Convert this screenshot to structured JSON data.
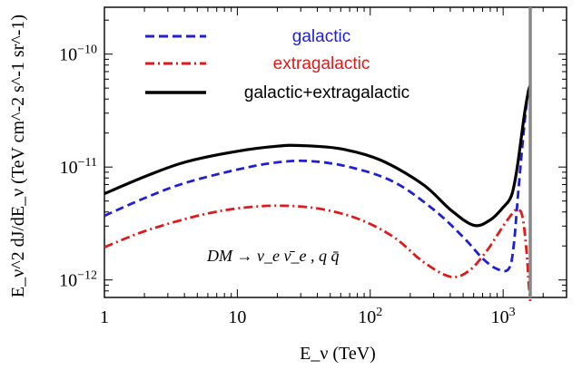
{
  "chart_data": {
    "type": "line",
    "xscale": "log",
    "yscale": "log",
    "xlim": [
      1,
      3000
    ],
    "ylim": [
      7e-13,
      2.6e-10
    ],
    "xlabel": "E_ν (TeV)",
    "ylabel": "E_ν^2 dJ/dE_ν (TeV cm^-2 s^-1 sr^-1)",
    "x_ticks": [
      {
        "value": 1,
        "label": "1"
      },
      {
        "value": 10,
        "label": "10"
      },
      {
        "value": 100,
        "label": "10",
        "exp": "2"
      },
      {
        "value": 1000,
        "label": "10",
        "exp": "3"
      }
    ],
    "y_ticks": [
      {
        "value": 1e-12,
        "label": "10",
        "exp": "−12"
      },
      {
        "value": 1e-11,
        "label": "10",
        "exp": "−11"
      },
      {
        "value": 1e-10,
        "label": "10",
        "exp": "−10"
      }
    ],
    "cutoff_line": {
      "x": 1600,
      "color": "#888888"
    },
    "legend_position": "top",
    "annotation": "DM → ν_e ν̄_e , q q̄",
    "series": [
      {
        "name": "galactic",
        "color": "#1f1fd6",
        "dash": "dashed",
        "points": [
          [
            1,
            3.7e-12
          ],
          [
            2,
            5.3e-12
          ],
          [
            4,
            7.2e-12
          ],
          [
            10,
            9.5e-12
          ],
          [
            20,
            1.1e-11
          ],
          [
            35,
            1.13e-11
          ],
          [
            70,
            1e-11
          ],
          [
            150,
            7.4e-12
          ],
          [
            300,
            4.2e-12
          ],
          [
            500,
            2.4e-12
          ],
          [
            700,
            1.55e-12
          ],
          [
            900,
            1.25e-12
          ],
          [
            1100,
            1.25e-12
          ],
          [
            1200,
            2e-12
          ],
          [
            1300,
            6e-12
          ],
          [
            1450,
            2.5e-11
          ],
          [
            1550,
            4.8e-11
          ],
          [
            1600,
            5.3e-11
          ]
        ]
      },
      {
        "name": "extragalactic",
        "color": "#e01a1a",
        "dash": "dashdot",
        "points": [
          [
            1,
            1.95e-12
          ],
          [
            2,
            2.7e-12
          ],
          [
            5,
            3.7e-12
          ],
          [
            10,
            4.3e-12
          ],
          [
            20,
            4.55e-12
          ],
          [
            40,
            4.3e-12
          ],
          [
            80,
            3.5e-12
          ],
          [
            150,
            2.4e-12
          ],
          [
            250,
            1.45e-12
          ],
          [
            400,
            1.07e-12
          ],
          [
            550,
            1.2e-12
          ],
          [
            750,
            1.8e-12
          ],
          [
            1000,
            3e-12
          ],
          [
            1200,
            4e-12
          ],
          [
            1300,
            4.2e-12
          ],
          [
            1400,
            3.6e-12
          ],
          [
            1500,
            1.8e-12
          ],
          [
            1560,
            9e-13
          ],
          [
            1600,
            6.5e-13
          ]
        ]
      },
      {
        "name": "galactic+extragalactic",
        "color": "#000000",
        "dash": "solid",
        "points": [
          [
            1,
            5.8e-12
          ],
          [
            2,
            8.2e-12
          ],
          [
            4,
            1.1e-11
          ],
          [
            10,
            1.38e-11
          ],
          [
            20,
            1.53e-11
          ],
          [
            30,
            1.55e-11
          ],
          [
            60,
            1.45e-11
          ],
          [
            120,
            1.15e-11
          ],
          [
            250,
            7e-12
          ],
          [
            400,
            4.2e-12
          ],
          [
            600,
            3.05e-12
          ],
          [
            800,
            3.4e-12
          ],
          [
            1000,
            4.4e-12
          ],
          [
            1150,
            5.5e-12
          ],
          [
            1250,
            8.5e-12
          ],
          [
            1350,
            1.6e-11
          ],
          [
            1450,
            3e-11
          ],
          [
            1550,
            4.7e-11
          ],
          [
            1600,
            5.3e-11
          ]
        ]
      }
    ]
  }
}
